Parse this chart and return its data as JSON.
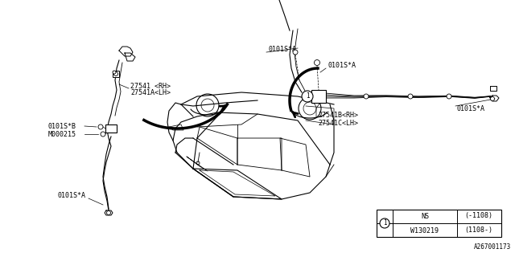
{
  "bg_color": "#ffffff",
  "diagram_id": "A267001173",
  "labels_left": {
    "part1": "27541 <RH>",
    "part2": "27541A<LH>",
    "bolt1": "0101S*B",
    "bolt2": "M000215",
    "bolt3": "0101S*A"
  },
  "labels_right": {
    "part1": "27541B<RH>",
    "part2": "27541C<LH>",
    "bolt1": "0101S*A",
    "bolt2": "0101S*A",
    "bolt3": "0101S*A"
  },
  "table_data": [
    [
      "NS",
      "(-1108)"
    ],
    [
      "W130219",
      "(1108-)"
    ]
  ],
  "line_color": "#000000",
  "text_color": "#000000",
  "font_size": 6.0
}
